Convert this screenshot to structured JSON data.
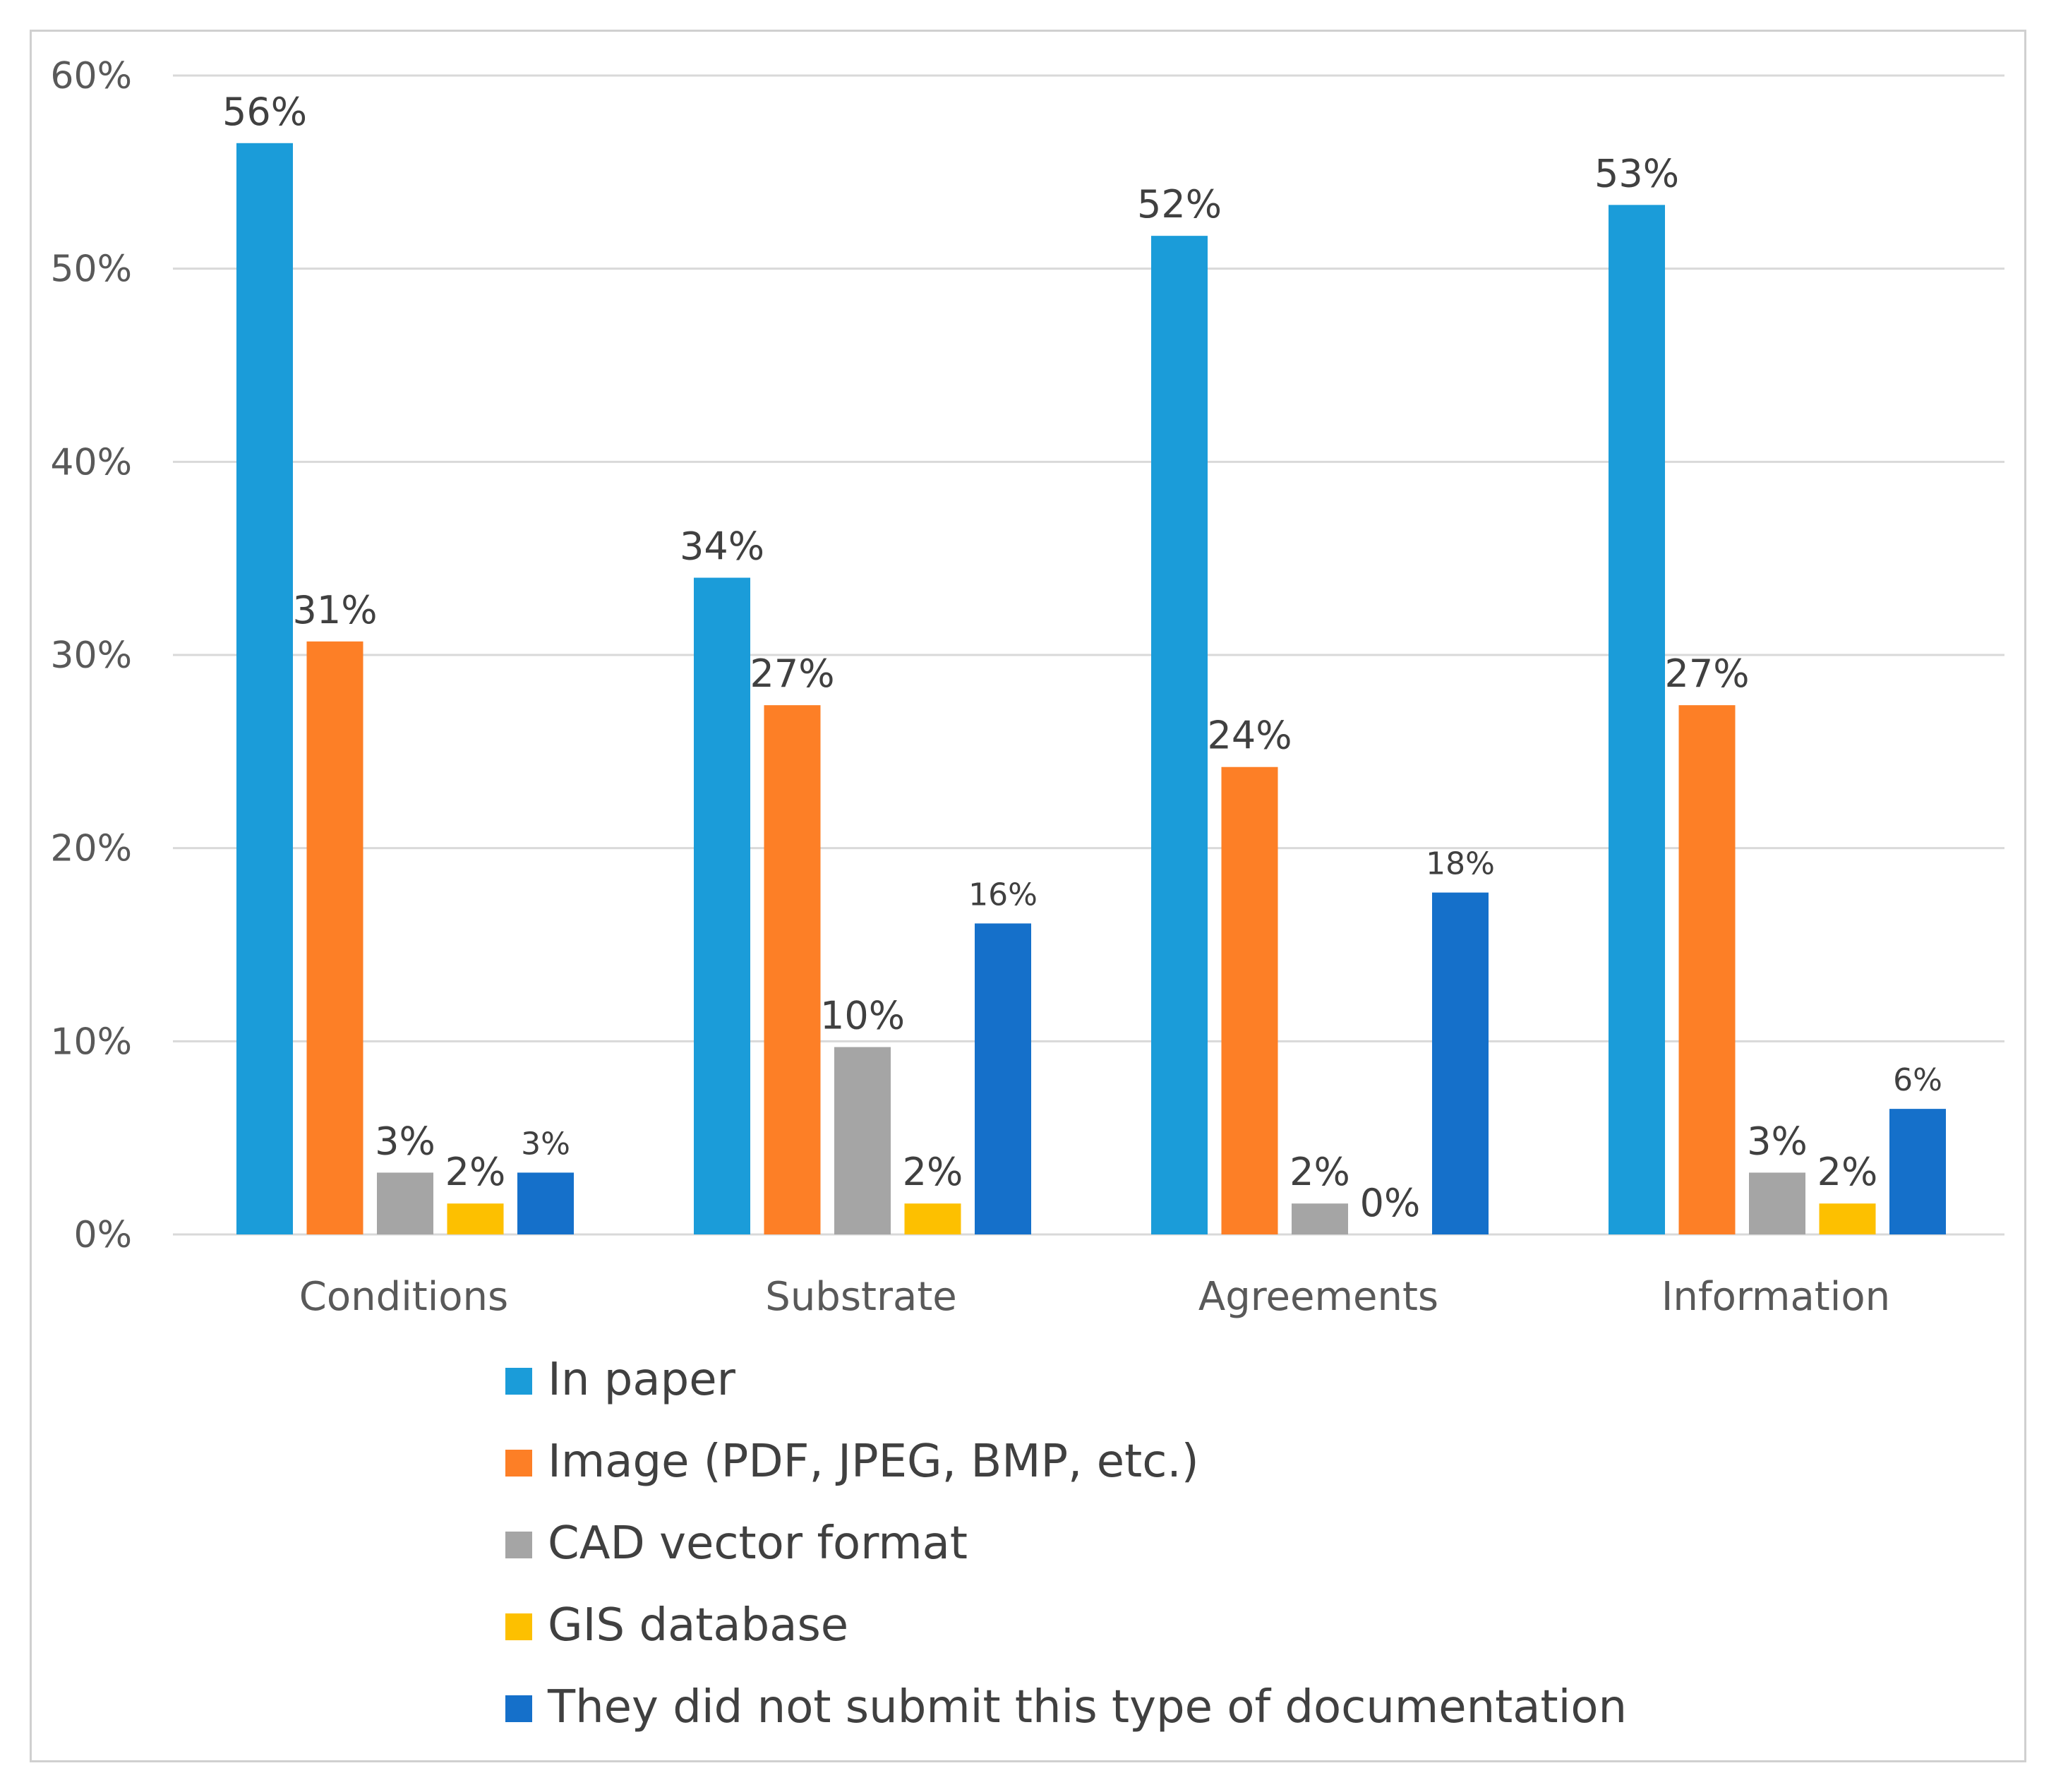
{
  "chart_data": {
    "type": "bar",
    "categories": [
      "Conditions",
      "Substrate",
      "Agreements",
      "Information"
    ],
    "series": [
      {
        "name": "In paper",
        "color": "#1b9cd9",
        "values": [
          56.5,
          34,
          51.7,
          53.3
        ],
        "labels": [
          "56%",
          "34%",
          "52%",
          "53%"
        ]
      },
      {
        "name": "Image (PDF, JPEG, BMP, etc.)",
        "color": "#fd7f26",
        "values": [
          30.7,
          27.4,
          24.2,
          27.4
        ],
        "labels": [
          "31%",
          "27%",
          "24%",
          "27%"
        ]
      },
      {
        "name": "CAD vector format",
        "color": "#a5a5a5",
        "values": [
          3.2,
          9.7,
          1.6,
          3.2
        ],
        "labels": [
          "3%",
          "10%",
          "2%",
          "3%"
        ]
      },
      {
        "name": "GIS database",
        "color": "#fdc000",
        "values": [
          1.6,
          1.6,
          0,
          1.6
        ],
        "labels": [
          "2%",
          "2%",
          "0%",
          "2%"
        ]
      },
      {
        "name": "They did not submit this type of documentation",
        "color": "#1570ca",
        "values": [
          3.2,
          16.1,
          17.7,
          6.5
        ],
        "labels": [
          "3%",
          "16%",
          "18%",
          "6%"
        ]
      }
    ],
    "ylim": [
      0,
      60
    ],
    "yticks": [
      0,
      10,
      20,
      30,
      40,
      50,
      60
    ],
    "ytick_labels": [
      "0%",
      "10%",
      "20%",
      "30%",
      "40%",
      "50%",
      "60%"
    ],
    "title": "",
    "xlabel": "",
    "ylabel": "",
    "grid": true,
    "legend_position": "bottom"
  }
}
